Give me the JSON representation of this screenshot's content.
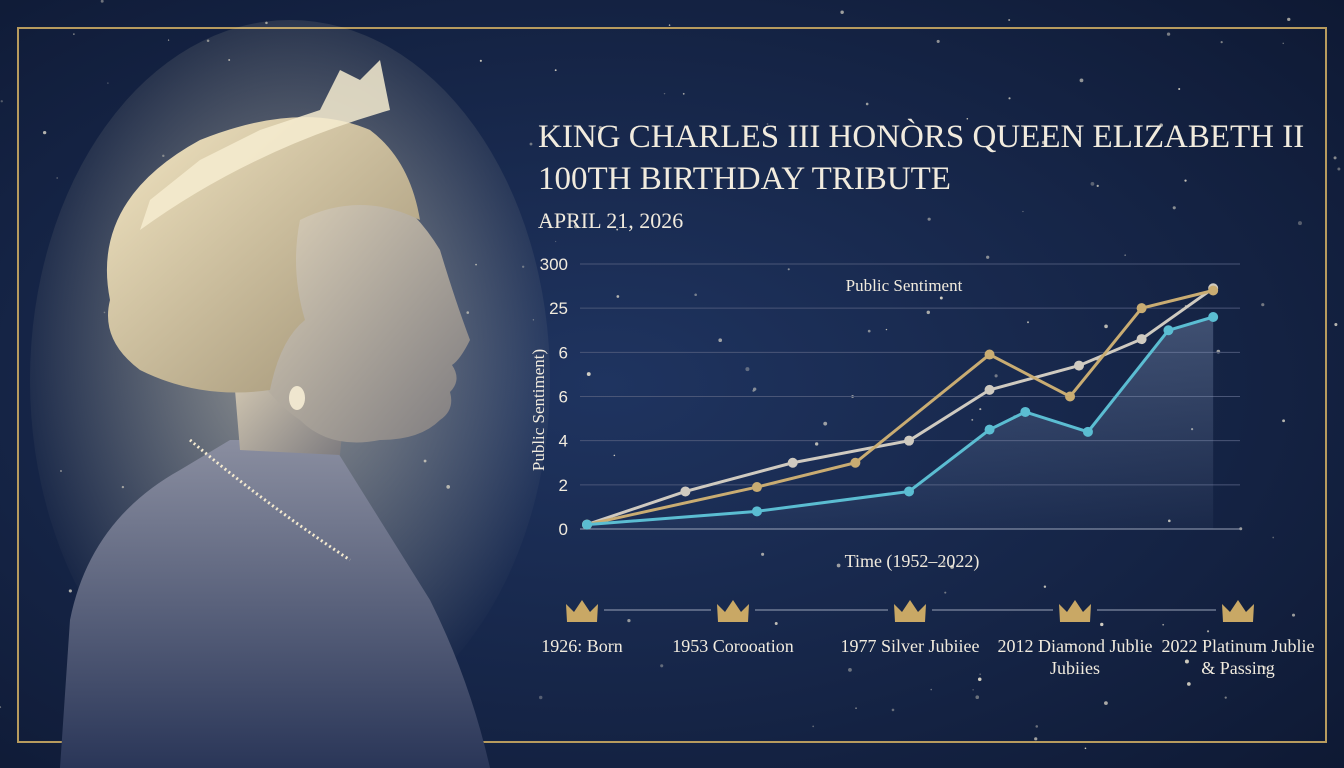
{
  "header": {
    "title": [
      "KING CHARLES III HONÒRS QUEEN ELIZABETH II",
      "100TH BIRTHDAY TRIBUTE"
    ],
    "date": "APRIL 21, 2026"
  },
  "chart_data": {
    "type": "line",
    "annotation": "Public Sentiment",
    "y_label": "Public Sentiment)",
    "x_label": "Time (1952–2022)",
    "xlim": [
      1952,
      2025
    ],
    "ylim": [
      0,
      6
    ],
    "yticks": [
      0,
      {
        "value": 1,
        "label": "2"
      },
      {
        "value": 2,
        "label": "4"
      },
      {
        "value": 3,
        "label": "6"
      },
      {
        "value": 4,
        "label": "6"
      },
      {
        "value": 5,
        "label": "25"
      },
      {
        "value": 6,
        "label": "300"
      }
    ],
    "grid": true,
    "series": [
      {
        "color": "#cfcac0",
        "x": [
          1952,
          1963,
          1975,
          1988,
          1997,
          2007,
          2014,
          2022
        ],
        "values": [
          0.1,
          0.85,
          1.5,
          2.0,
          3.15,
          3.7,
          4.3,
          5.45
        ]
      },
      {
        "color": "#c9ac72",
        "x": [
          1952,
          1971,
          1982,
          1997,
          2006,
          2014,
          2022
        ],
        "values": [
          0.1,
          0.95,
          1.5,
          3.95,
          3.0,
          5.0,
          5.4
        ]
      },
      {
        "color": "#5bbdd2",
        "x": [
          1952,
          1971,
          1988,
          1997,
          2001,
          2008,
          2017,
          2022
        ],
        "values": [
          0.1,
          0.4,
          0.85,
          2.25,
          2.65,
          2.2,
          4.5,
          4.8
        ],
        "area": true
      }
    ]
  },
  "timeline": [
    [
      "1926: Born"
    ],
    [
      "1953 Corooation"
    ],
    [
      "1977 Silver Jubiiee"
    ],
    [
      "2012 Diamond Jublie",
      "Jubiies"
    ],
    [
      "2022 Platinum Jublie",
      "& Passing"
    ]
  ]
}
